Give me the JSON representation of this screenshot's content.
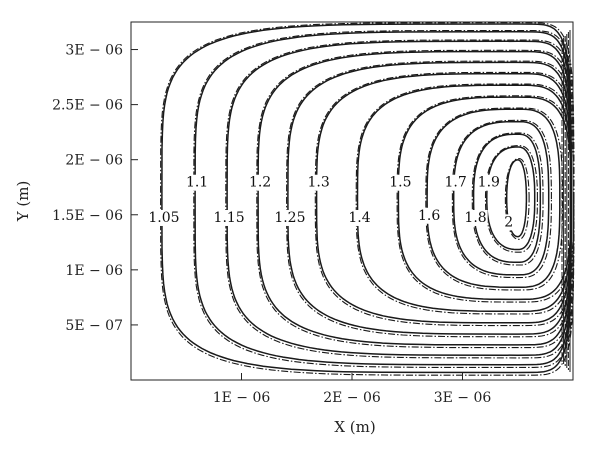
{
  "chart_data": {
    "type": "contour",
    "xlabel": "X (m)",
    "ylabel": "Y (m)",
    "xlim": [
      0,
      4e-06
    ],
    "ylim": [
      0,
      3.25e-06
    ],
    "x_ticks": [
      {
        "value": 1e-06,
        "label": "1E − 06"
      },
      {
        "value": 2e-06,
        "label": "2E − 06"
      },
      {
        "value": 3e-06,
        "label": "3E − 06"
      }
    ],
    "y_ticks": [
      {
        "value": 5e-07,
        "label": "5E − 07"
      },
      {
        "value": 1e-06,
        "label": "1E − 06"
      },
      {
        "value": 1.5e-06,
        "label": "1.5E − 06"
      },
      {
        "value": 2e-06,
        "label": "2E − 06"
      },
      {
        "value": 2.5e-06,
        "label": "2.5E − 06"
      },
      {
        "value": 3e-06,
        "label": "3E − 06"
      }
    ],
    "center": {
      "x": 3.5e-06,
      "y": 1.65e-06
    },
    "levels": [
      {
        "label": "1.05",
        "left_x": 2.8e-07,
        "label_y": 1.48e-06
      },
      {
        "label": "1.1",
        "left_x": 5.8e-07,
        "label_y": 1.8e-06
      },
      {
        "label": "1.15",
        "left_x": 8.7e-07,
        "label_y": 1.48e-06
      },
      {
        "label": "1.2",
        "left_x": 1.15e-06,
        "label_y": 1.8e-06
      },
      {
        "label": "1.25",
        "left_x": 1.42e-06,
        "label_y": 1.48e-06
      },
      {
        "label": "1.3",
        "left_x": 1.68e-06,
        "label_y": 1.8e-06
      },
      {
        "label": "1.4",
        "left_x": 2.05e-06,
        "label_y": 1.48e-06
      },
      {
        "label": "1.5",
        "left_x": 2.42e-06,
        "label_y": 1.8e-06
      },
      {
        "label": "1.6",
        "left_x": 2.68e-06,
        "label_y": 1.5e-06
      },
      {
        "label": "1.7",
        "left_x": 2.92e-06,
        "label_y": 1.8e-06
      },
      {
        "label": "1.8",
        "left_x": 3.1e-06,
        "label_y": 1.48e-06
      },
      {
        "label": "1.9",
        "left_x": 3.22e-06,
        "label_y": 1.8e-06
      },
      {
        "label": "2",
        "left_x": 3.4e-06,
        "label_y": 1.44e-06
      }
    ],
    "line_styles": [
      "solid",
      "dash-dot"
    ],
    "grid": false
  }
}
